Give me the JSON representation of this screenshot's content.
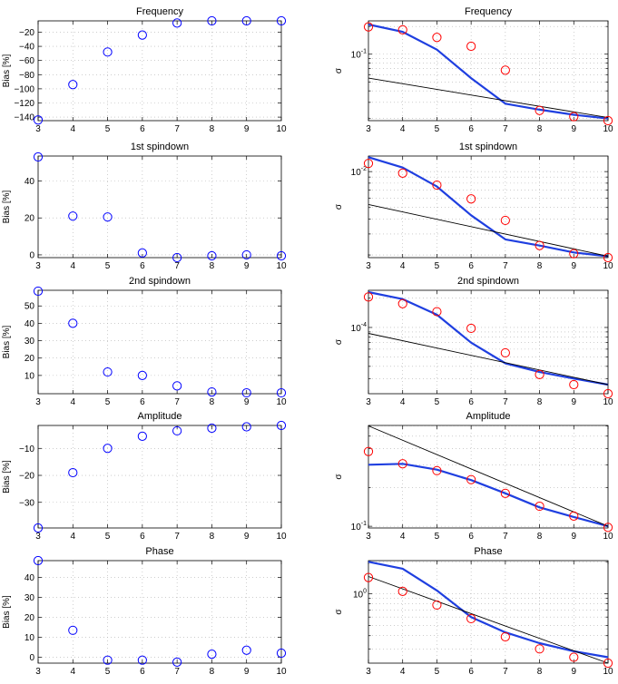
{
  "figure": {
    "layout": "5 rows x 2 columns",
    "left_column_ylabel": "Bias [%]",
    "right_column_ylabel": "σ"
  },
  "chart_data": [
    {
      "type": "scatter",
      "title": "Frequency",
      "xlabel": "",
      "ylabel": "Bias [%]",
      "xlim": [
        3,
        10
      ],
      "ylim": [
        -145,
        -4
      ],
      "grid": true,
      "xticks": [
        "3",
        "4",
        "5",
        "6",
        "7",
        "8",
        "9",
        "10"
      ],
      "yticks": [
        {
          "v": -140,
          "t": "−140"
        },
        {
          "v": -120,
          "t": "−120"
        },
        {
          "v": -100,
          "t": "−100"
        },
        {
          "v": -80,
          "t": "−80"
        },
        {
          "v": -60,
          "t": "−60"
        },
        {
          "v": -40,
          "t": "−40"
        },
        {
          "v": -20,
          "t": "−20"
        }
      ],
      "series": [
        {
          "name": "bias",
          "marker": "circle",
          "color": "#0000ff",
          "x": [
            3,
            4,
            5,
            6,
            7,
            8,
            9,
            10
          ],
          "y": [
            -144,
            -94,
            -48,
            -24,
            -7,
            -4,
            -4,
            -4
          ]
        }
      ]
    },
    {
      "type": "line",
      "title": "Frequency",
      "xlabel": "",
      "ylabel": "σ",
      "xlim": [
        3,
        10
      ],
      "ylim": [
        0.019,
        0.23
      ],
      "yscale": "log",
      "grid": true,
      "xticks": [
        "3",
        "4",
        "5",
        "6",
        "7",
        "8",
        "9",
        "10"
      ],
      "yticks": [
        {
          "v": 0.1,
          "t": "10",
          "exp": "-1"
        }
      ],
      "series": [
        {
          "name": "curve",
          "style": "line",
          "color": "#1f3fe0",
          "x": [
            3,
            4,
            5,
            6,
            7,
            8,
            9,
            10
          ],
          "y": [
            0.21,
            0.175,
            0.112,
            0.055,
            0.029,
            0.025,
            0.022,
            0.02
          ]
        },
        {
          "name": "reference",
          "style": "line",
          "color": "#000000",
          "x": [
            3,
            10
          ],
          "y": [
            0.055,
            0.0205
          ]
        },
        {
          "name": "measured",
          "style": "marker",
          "marker": "circle",
          "color": "#ff0000",
          "x": [
            3,
            4,
            5,
            6,
            7,
            8,
            9,
            10
          ],
          "y": [
            0.198,
            0.184,
            0.152,
            0.122,
            0.067,
            0.0245,
            0.021,
            0.019
          ]
        }
      ]
    },
    {
      "type": "scatter",
      "title": "1st spindown",
      "xlabel": "",
      "ylabel": "Bias [%]",
      "xlim": [
        3,
        10
      ],
      "ylim": [
        -1.5,
        53.5
      ],
      "grid": true,
      "xticks": [
        "3",
        "4",
        "5",
        "6",
        "7",
        "8",
        "9",
        "10"
      ],
      "yticks": [
        {
          "v": 0,
          "t": "0"
        },
        {
          "v": 20,
          "t": "20"
        },
        {
          "v": 40,
          "t": "40"
        }
      ],
      "series": [
        {
          "name": "bias",
          "marker": "circle",
          "color": "#0000ff",
          "x": [
            3,
            4,
            5,
            6,
            7,
            8,
            9,
            10
          ],
          "y": [
            53,
            21,
            20.5,
            1,
            -1.5,
            -0.5,
            0,
            -0.5
          ]
        }
      ]
    },
    {
      "type": "line",
      "title": "1st spindown",
      "xlabel": "",
      "ylabel": "σ",
      "xlim": [
        3,
        10
      ],
      "ylim": [
        0.0019,
        0.0135
      ],
      "yscale": "log",
      "grid": true,
      "xticks": [
        "3",
        "4",
        "5",
        "6",
        "7",
        "8",
        "9",
        "10"
      ],
      "yticks": [
        {
          "v": 0.01,
          "t": "10",
          "exp": "-2"
        }
      ],
      "series": [
        {
          "name": "curve",
          "style": "line",
          "color": "#1f3fe0",
          "x": [
            3,
            4,
            5,
            6,
            7,
            8,
            9,
            10
          ],
          "y": [
            0.0132,
            0.0108,
            0.0075,
            0.0043,
            0.0027,
            0.0024,
            0.0021,
            0.00195
          ]
        },
        {
          "name": "reference",
          "style": "line",
          "color": "#000000",
          "x": [
            3,
            10
          ],
          "y": [
            0.0053,
            0.00195
          ]
        },
        {
          "name": "measured",
          "style": "marker",
          "marker": "circle",
          "color": "#ff0000",
          "x": [
            3,
            4,
            5,
            6,
            7,
            8,
            9,
            10
          ],
          "y": [
            0.0117,
            0.0097,
            0.0077,
            0.0059,
            0.0039,
            0.0024,
            0.00205,
            0.0019
          ]
        }
      ]
    },
    {
      "type": "scatter",
      "title": "2nd spindown",
      "xlabel": "",
      "ylabel": "Bias [%]",
      "xlim": [
        3,
        10
      ],
      "ylim": [
        -0.5,
        59
      ],
      "grid": true,
      "xticks": [
        "3",
        "4",
        "5",
        "6",
        "7",
        "8",
        "9",
        "10"
      ],
      "yticks": [
        {
          "v": 10,
          "t": "10"
        },
        {
          "v": 20,
          "t": "20"
        },
        {
          "v": 30,
          "t": "30"
        },
        {
          "v": 40,
          "t": "40"
        },
        {
          "v": 50,
          "t": "50"
        }
      ],
      "series": [
        {
          "name": "bias",
          "marker": "circle",
          "color": "#0000ff",
          "x": [
            3,
            4,
            5,
            6,
            7,
            8,
            9,
            10
          ],
          "y": [
            58.5,
            40,
            12,
            10,
            4,
            0.5,
            0,
            0
          ]
        }
      ]
    },
    {
      "type": "line",
      "title": "2nd spindown",
      "xlabel": "",
      "ylabel": "σ",
      "xlim": [
        3,
        10
      ],
      "ylim": [
        2.1e-05,
        0.00024
      ],
      "yscale": "log",
      "grid": true,
      "xticks": [
        "3",
        "4",
        "5",
        "6",
        "7",
        "8",
        "9",
        "10"
      ],
      "yticks": [
        {
          "v": 0.0001,
          "t": "10",
          "exp": "-4"
        }
      ],
      "series": [
        {
          "name": "curve",
          "style": "line",
          "color": "#1f3fe0",
          "x": [
            3,
            4,
            5,
            6,
            7,
            8,
            9,
            10
          ],
          "y": [
            0.00023,
            0.000195,
            0.000135,
            7e-05,
            4.3e-05,
            3.5e-05,
            3e-05,
            2.6e-05
          ]
        },
        {
          "name": "reference",
          "style": "line",
          "color": "#000000",
          "x": [
            3,
            10
          ],
          "y": [
            8.7e-05,
            2.6e-05
          ]
        },
        {
          "name": "measured",
          "style": "marker",
          "marker": "circle",
          "color": "#ff0000",
          "x": [
            3,
            4,
            5,
            6,
            7,
            8,
            9,
            10
          ],
          "y": [
            0.000205,
            0.000175,
            0.000145,
            9.8e-05,
            5.5e-05,
            3.3e-05,
            2.6e-05,
            2.1e-05
          ]
        }
      ]
    },
    {
      "type": "scatter",
      "title": "Amplitude",
      "xlabel": "",
      "ylabel": "Bias [%]",
      "xlim": [
        3,
        10
      ],
      "ylim": [
        -39.5,
        -1.5
      ],
      "grid": true,
      "xticks": [
        "3",
        "4",
        "5",
        "6",
        "7",
        "8",
        "9",
        "10"
      ],
      "yticks": [
        {
          "v": -30,
          "t": "−30"
        },
        {
          "v": -20,
          "t": "−20"
        },
        {
          "v": -10,
          "t": "−10"
        }
      ],
      "series": [
        {
          "name": "bias",
          "marker": "circle",
          "color": "#0000ff",
          "x": [
            3,
            4,
            5,
            6,
            7,
            8,
            9,
            10
          ],
          "y": [
            -39.5,
            -19,
            -10,
            -5.5,
            -3.5,
            -2.5,
            -2,
            -1.5
          ]
        }
      ]
    },
    {
      "type": "line",
      "title": "Amplitude",
      "xlabel": "",
      "ylabel": "σ",
      "xlim": [
        3,
        10
      ],
      "ylim": [
        0.097,
        0.605
      ],
      "yscale": "log",
      "grid": true,
      "xticks": [
        "3",
        "4",
        "5",
        "6",
        "7",
        "8",
        "9",
        "10"
      ],
      "yticks": [
        {
          "v": 0.1,
          "t": "10",
          "exp": "-1"
        }
      ],
      "series": [
        {
          "name": "curve",
          "style": "line",
          "color": "#1f3fe0",
          "x": [
            3,
            4,
            5,
            6,
            7,
            8,
            9,
            10
          ],
          "y": [
            0.3,
            0.305,
            0.275,
            0.228,
            0.18,
            0.14,
            0.118,
            0.1
          ]
        },
        {
          "name": "reference",
          "style": "line",
          "color": "#000000",
          "x": [
            3,
            10
          ],
          "y": [
            0.6,
            0.1
          ]
        },
        {
          "name": "measured",
          "style": "marker",
          "marker": "circle",
          "color": "#ff0000",
          "x": [
            3,
            4,
            5,
            6,
            7,
            8,
            9,
            10
          ],
          "y": [
            0.38,
            0.305,
            0.27,
            0.23,
            0.18,
            0.143,
            0.12,
            0.098
          ]
        }
      ]
    },
    {
      "type": "scatter",
      "title": "Phase",
      "xlabel": "",
      "ylabel": "Bias [%]",
      "xlim": [
        3,
        10
      ],
      "ylim": [
        -3,
        48.5
      ],
      "grid": true,
      "xticks": [
        "3",
        "4",
        "5",
        "6",
        "7",
        "8",
        "9",
        "10"
      ],
      "yticks": [
        {
          "v": 0,
          "t": "0"
        },
        {
          "v": 10,
          "t": "10"
        },
        {
          "v": 20,
          "t": "20"
        },
        {
          "v": 30,
          "t": "30"
        },
        {
          "v": 40,
          "t": "40"
        }
      ],
      "series": [
        {
          "name": "bias",
          "marker": "circle",
          "color": "#0000ff",
          "x": [
            3,
            4,
            5,
            6,
            7,
            8,
            9,
            10
          ],
          "y": [
            48.5,
            13.5,
            -1.5,
            -1.5,
            -2.5,
            1.5,
            3.5,
            2
          ]
        }
      ]
    },
    {
      "type": "line",
      "title": "Phase",
      "xlabel": "",
      "ylabel": "σ",
      "xlim": [
        3,
        10
      ],
      "ylim": [
        0.22,
        2.05
      ],
      "yscale": "log",
      "grid": true,
      "xticks": [
        "3",
        "4",
        "5",
        "6",
        "7",
        "8",
        "9",
        "10"
      ],
      "yticks": [
        {
          "v": 1,
          "t": "10",
          "exp": "0"
        }
      ],
      "series": [
        {
          "name": "curve",
          "style": "line",
          "color": "#1f3fe0",
          "x": [
            3,
            4,
            5,
            6,
            7,
            8,
            9,
            10
          ],
          "y": [
            2.0,
            1.72,
            1.07,
            0.6,
            0.43,
            0.34,
            0.285,
            0.25
          ]
        },
        {
          "name": "reference",
          "style": "line",
          "color": "#000000",
          "x": [
            3,
            10
          ],
          "y": [
            1.45,
            0.22
          ]
        },
        {
          "name": "measured",
          "style": "marker",
          "marker": "circle",
          "color": "#ff0000",
          "x": [
            3,
            4,
            5,
            6,
            7,
            8,
            9,
            10
          ],
          "y": [
            1.42,
            1.05,
            0.78,
            0.58,
            0.39,
            0.3,
            0.25,
            0.22
          ]
        }
      ]
    }
  ]
}
